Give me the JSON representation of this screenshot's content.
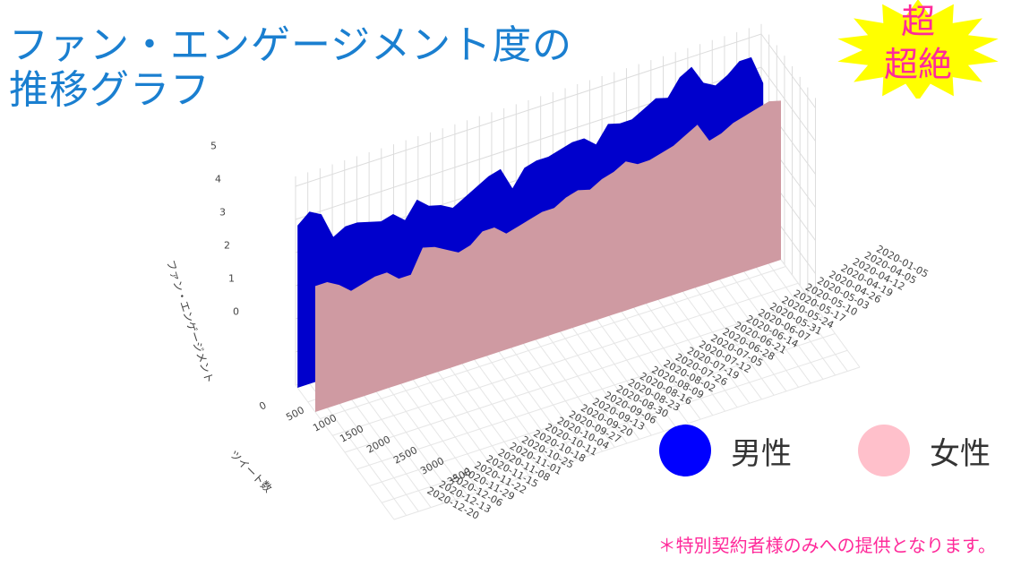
{
  "title": {
    "line1": "ファン・エンゲージメント度の",
    "line2": "推移グラフ"
  },
  "badge": {
    "line1": "超",
    "line2": "超絶",
    "burst_color": "#ffff00",
    "text_color": "#ff2a9a"
  },
  "legend": [
    {
      "label": "男性",
      "color": "#0000ff"
    },
    {
      "label": "女性",
      "color": "#ffc0cb"
    }
  ],
  "footnote": "＊特別契約者様のみへの提供となります。",
  "chart_data": {
    "type": "area",
    "subtype": "3d-ribbon",
    "title": "ファン・エンゲージメント度の推移グラフ",
    "zlabel": "ファン・エンゲージメント",
    "xlabel": "ツイート数",
    "ylabel": "",
    "z_ticks": [
      "0",
      "1",
      "2",
      "3",
      "4",
      "5"
    ],
    "x_ticks": [
      "0",
      "500",
      "1000",
      "1500",
      "2000",
      "2500",
      "3000",
      "3500"
    ],
    "date_ticks": [
      "2020-12-20",
      "2020-12-13",
      "2020-12-06",
      "2020-11-29",
      "2020-11-22",
      "2020-11-15",
      "2020-11-08",
      "2020-11-01",
      "2020-10-25",
      "2020-10-18",
      "2020-10-11",
      "2020-10-04",
      "2020-09-27",
      "2020-09-20",
      "2020-09-13",
      "2020-09-06",
      "2020-08-30",
      "2020-08-23",
      "2020-08-16",
      "2020-08-09",
      "2020-08-02",
      "2020-07-26",
      "2020-07-19",
      "2020-07-12",
      "2020-07-05",
      "2020-06-28",
      "2020-06-21",
      "2020-06-14",
      "2020-06-07",
      "2020-05-31",
      "2020-05-24",
      "2020-05-17",
      "2020-05-10",
      "2020-05-03",
      "2020-04-26",
      "2020-04-19",
      "2020-04-12",
      "2020-04-05",
      "2020-01-05"
    ],
    "zlim": [
      0,
      5.5
    ],
    "grid": true,
    "series": [
      {
        "name": "男性",
        "color": "#0000cc",
        "values": [
          4.9,
          5.2,
          5.0,
          4.2,
          4.4,
          4.4,
          4.3,
          4.2,
          4.3,
          4.0,
          4.5,
          4.2,
          4.1,
          3.9,
          4.1,
          4.3,
          4.5,
          4.6,
          3.9,
          4.4,
          4.5,
          4.5,
          4.6,
          4.7,
          4.7,
          4.4,
          4.9,
          4.8,
          4.8,
          5.0,
          5.2,
          5.1,
          5.6,
          5.8,
          5.2,
          5.0,
          5.2,
          5.5,
          5.5,
          4.6
        ]
      },
      {
        "name": "女性",
        "color": "#cf9aa2",
        "values": [
          3.8,
          3.8,
          3.6,
          3.3,
          3.4,
          3.5,
          3.5,
          3.2,
          3.2,
          3.9,
          3.8,
          3.6,
          3.4,
          3.5,
          3.8,
          3.8,
          3.5,
          3.6,
          3.7,
          3.8,
          3.8,
          4.0,
          4.1,
          4.0,
          4.2,
          4.3,
          4.5,
          4.3,
          4.3,
          4.4,
          4.5,
          4.7,
          4.9,
          4.3,
          4.4,
          4.6,
          4.7,
          4.8,
          4.9,
          4.8
        ]
      }
    ]
  }
}
